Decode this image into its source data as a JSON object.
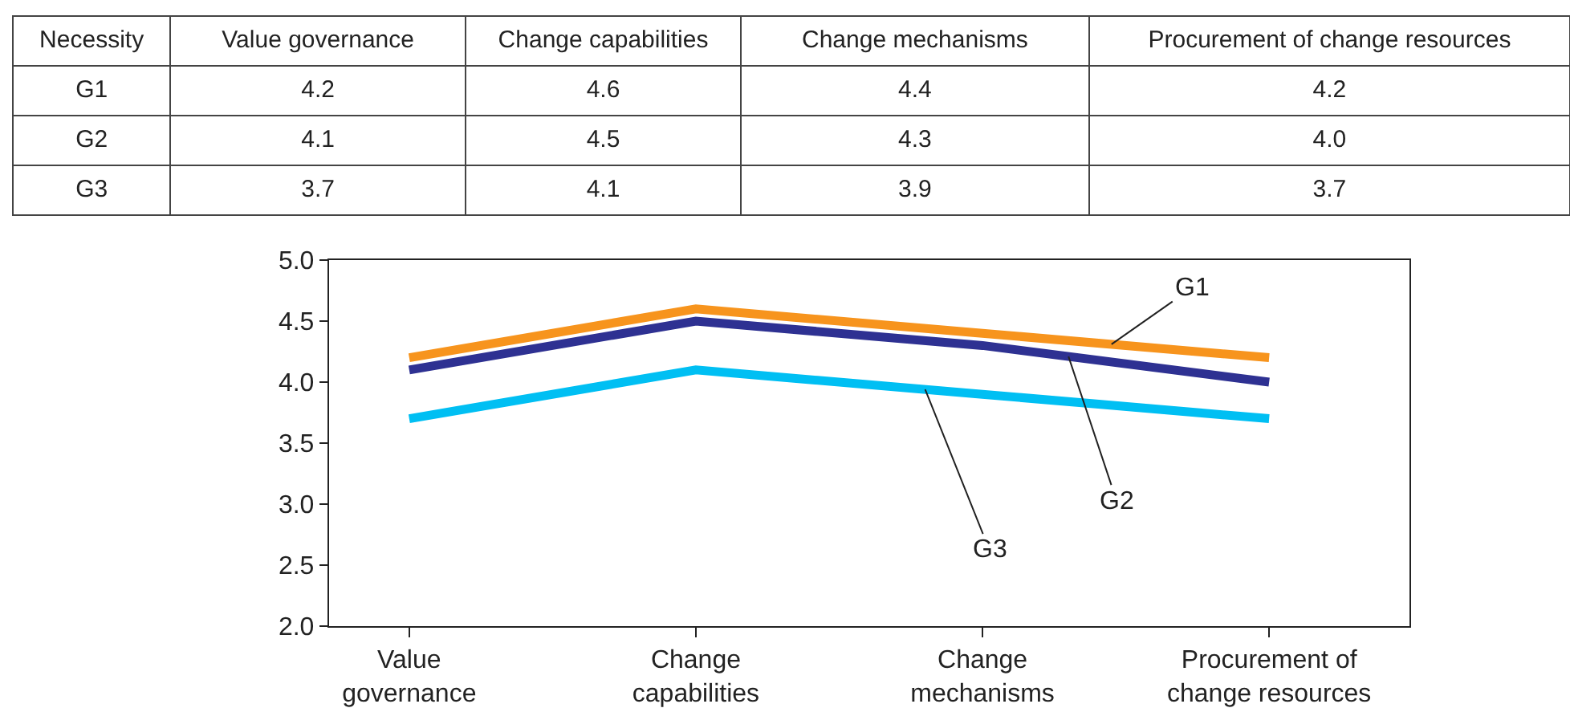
{
  "chart_data": {
    "type": "line",
    "categories": [
      "Value governance",
      "Change capabilities",
      "Change mechanisms",
      "Procurement of change resources"
    ],
    "series": [
      {
        "name": "G1",
        "color": "#f7941d",
        "values": [
          4.2,
          4.6,
          4.4,
          4.2
        ],
        "value_labels": [
          "4.2",
          "4.6",
          "4.4",
          "4.2"
        ]
      },
      {
        "name": "G2",
        "color": "#2e3192",
        "values": [
          4.1,
          4.5,
          4.3,
          4.0
        ],
        "value_labels": [
          "4.1",
          "4.5",
          "4.3",
          "4.0"
        ]
      },
      {
        "name": "G3",
        "color": "#00bff3",
        "values": [
          3.7,
          4.1,
          3.9,
          3.7
        ],
        "value_labels": [
          "3.7",
          "4.1",
          "3.9",
          "3.7"
        ]
      }
    ],
    "ylim": [
      2.0,
      5.0
    ],
    "yticks": [
      {
        "value": 2.0,
        "label": "2.0"
      },
      {
        "value": 2.5,
        "label": "2.5"
      },
      {
        "value": 3.0,
        "label": "3.0"
      },
      {
        "value": 3.5,
        "label": "3.5"
      },
      {
        "value": 4.0,
        "label": "4.0"
      },
      {
        "value": 4.5,
        "label": "4.5"
      },
      {
        "value": 5.0,
        "label": "5.0"
      }
    ],
    "annotations": [
      "Necessity"
    ],
    "legend": false,
    "marker": "none",
    "line_style": "solid"
  }
}
